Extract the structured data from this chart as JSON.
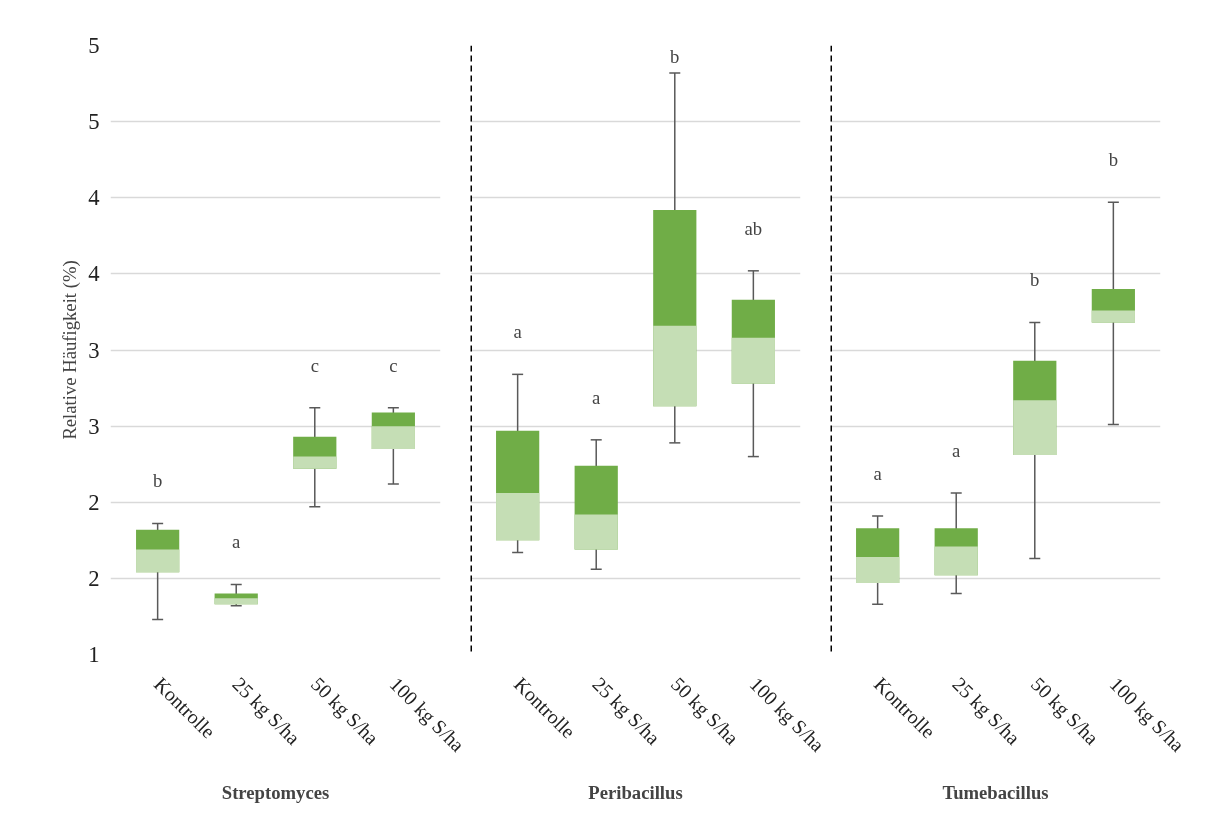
{
  "chart_data": [
    {
      "type": "box",
      "ylabel": "Relative Häufigkeit (%)",
      "xlabel": "Streptomyces",
      "categories": [
        "Kontrolle",
        "25 kg S/ha",
        "50 kg S/ha",
        "100 kg S/ha"
      ],
      "series": [
        {
          "color": "#70ad47",
          "boxes": [
            {
              "low": 1.23,
              "q1": 1.54,
              "median": 1.69,
              "q3": 1.82,
              "high": 1.86
            },
            {
              "low": 1.32,
              "q1": 1.33,
              "median": 1.37,
              "q3": 1.4,
              "high": 1.46
            },
            {
              "low": 1.97,
              "q1": 2.22,
              "median": 2.3,
              "q3": 2.43,
              "high": 2.62
            },
            {
              "low": 2.12,
              "q1": 2.35,
              "median": 2.5,
              "q3": 2.59,
              "high": 2.62
            }
          ]
        }
      ],
      "ylim": [
        1,
        5
      ],
      "yticks": [
        1,
        {
          "value": 1.5,
          "label": "2"
        },
        2,
        {
          "value": 2.5,
          "label": "3"
        },
        3,
        {
          "value": 3.5,
          "label": "4"
        },
        4,
        {
          "value": 4.5,
          "label": "5"
        },
        5
      ],
      "grid": "y",
      "annotations": [
        "b",
        "a",
        "c",
        "c"
      ]
    },
    {
      "type": "box",
      "xlabel": "Peribacillus",
      "categories": [
        "Kontrolle",
        "25 kg S/ha",
        "50 kg S/ha",
        "100 kg S/ha"
      ],
      "series": [
        {
          "color": "#70ad47",
          "boxes": [
            {
              "low": 1.67,
              "q1": 1.75,
              "median": 2.06,
              "q3": 2.47,
              "high": 2.84
            },
            {
              "low": 1.56,
              "q1": 1.69,
              "median": 1.92,
              "q3": 2.24,
              "high": 2.41
            },
            {
              "low": 2.39,
              "q1": 2.63,
              "median": 3.16,
              "q3": 3.92,
              "high": 4.82
            },
            {
              "low": 2.3,
              "q1": 2.78,
              "median": 3.08,
              "q3": 3.33,
              "high": 3.52
            }
          ]
        }
      ],
      "ylim": [
        1,
        5
      ],
      "yticks": [
        1,
        1.5,
        2,
        2.5,
        3,
        3.5,
        4,
        4.5,
        5
      ],
      "grid": "y",
      "tick_labels": "x",
      "annotations": [
        "a",
        "a",
        "b",
        "ab"
      ]
    },
    {
      "type": "box",
      "xlabel": "Tumebacillus",
      "categories": [
        "Kontrolle",
        "25 kg S/ha",
        "50 kg S/ha",
        "100 kg S/ha"
      ],
      "series": [
        {
          "color": "#70ad47",
          "boxes": [
            {
              "low": 1.33,
              "q1": 1.47,
              "median": 1.64,
              "q3": 1.83,
              "high": 1.91
            },
            {
              "low": 1.4,
              "q1": 1.52,
              "median": 1.71,
              "q3": 1.83,
              "high": 2.06
            },
            {
              "low": 1.63,
              "q1": 2.31,
              "median": 2.67,
              "q3": 2.93,
              "high": 3.18
            },
            {
              "low": 2.51,
              "q1": 3.18,
              "median": 3.26,
              "q3": 3.4,
              "high": 3.97
            }
          ]
        }
      ],
      "ylim": [
        1,
        5
      ],
      "yticks": [
        1,
        1.5,
        2,
        2.5,
        3,
        3.5,
        4,
        4.5,
        5
      ],
      "grid": "y",
      "tick_labels": "x",
      "annotations": [
        "a",
        "a",
        "b",
        "b"
      ]
    }
  ]
}
